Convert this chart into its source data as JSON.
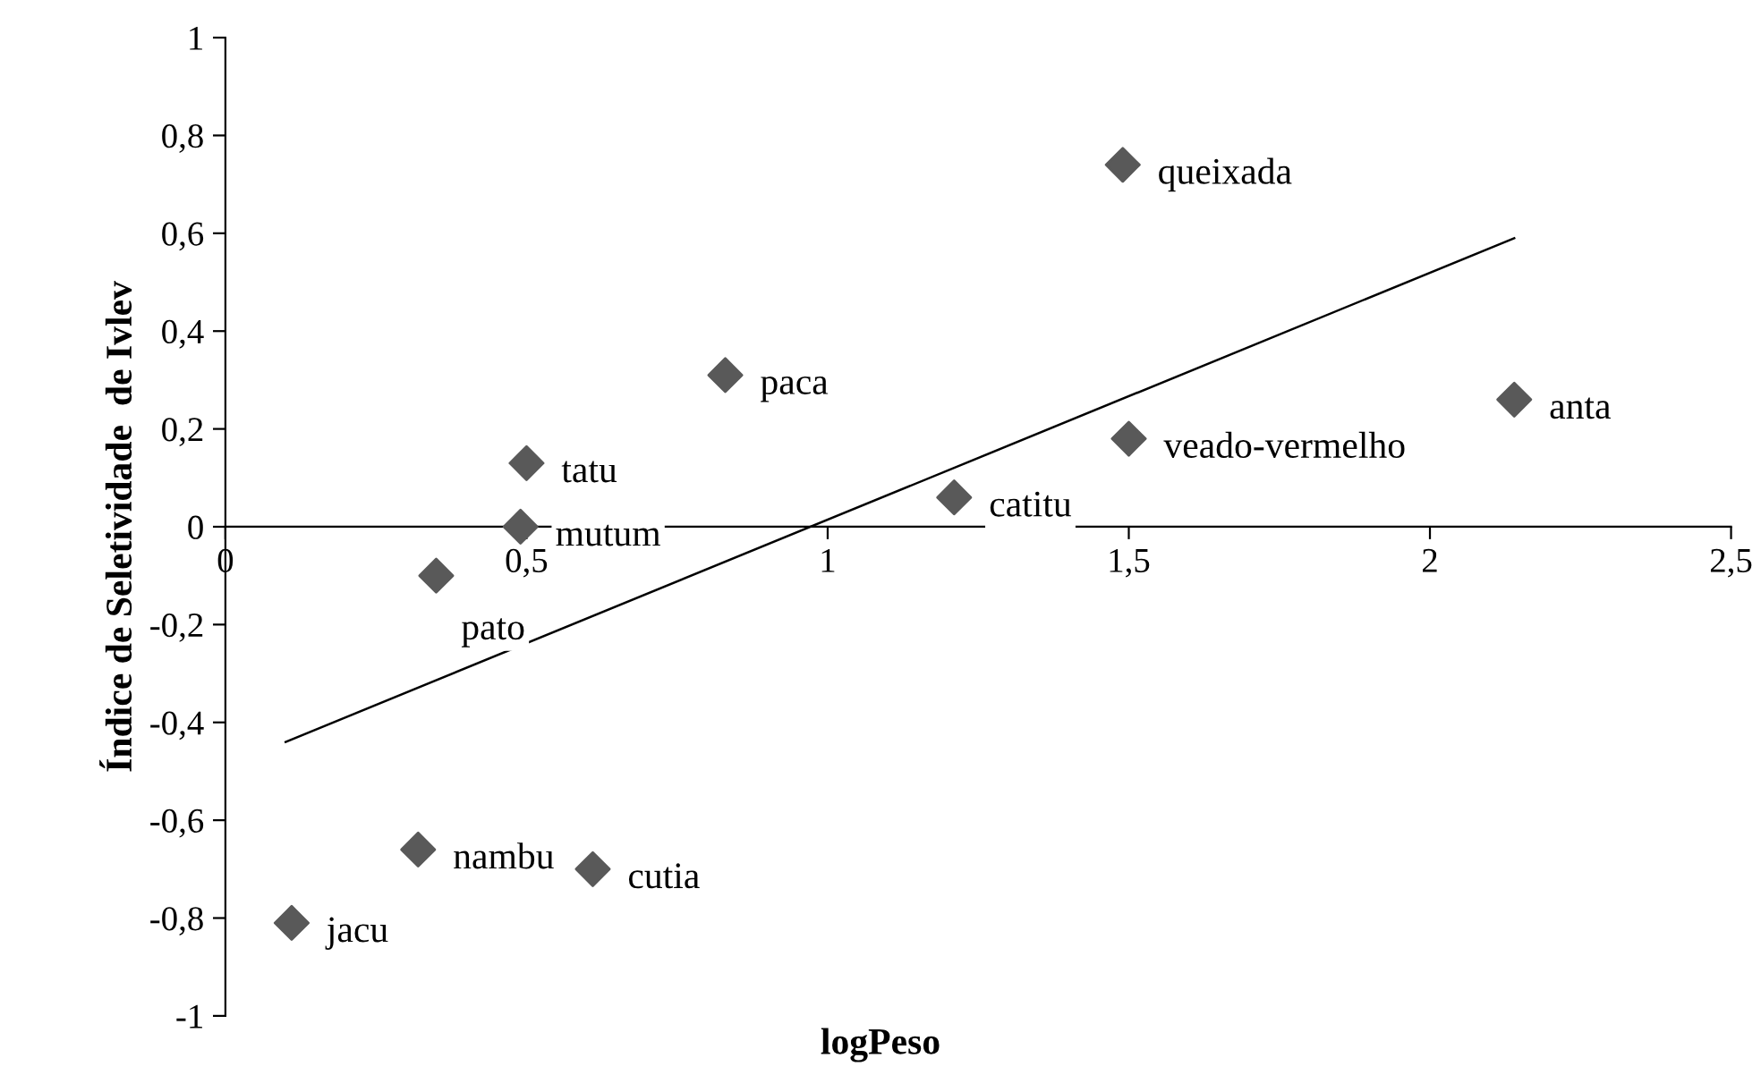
{
  "chart_data": {
    "type": "scatter",
    "xlabel": "logPeso",
    "ylabel": "Índice de Seletividade  de Ivlev",
    "series": [
      {
        "color": "#595959",
        "marker": "diamond",
        "x": [
          1.49,
          0.83,
          2.14,
          1.5,
          0.5,
          1.21,
          0.49,
          0.35,
          0.32,
          0.61,
          0.11
        ],
        "values": [
          0.74,
          0.31,
          0.26,
          0.18,
          0.13,
          0.06,
          0.0,
          -0.1,
          -0.66,
          -0.7,
          -0.81
        ]
      },
      {
        "type": "line",
        "color": "#000000",
        "marker": "none",
        "x": [
          0.1,
          2.14
        ],
        "values": [
          -0.44,
          0.59
        ]
      }
    ],
    "annotations": [
      {
        "text": "queixada",
        "x": 1.49,
        "y": 0.74
      },
      {
        "text": "paca",
        "x": 0.83,
        "y": 0.31
      },
      {
        "text": "anta",
        "x": 2.14,
        "y": 0.26
      },
      {
        "text": "veado-vermelho",
        "x": 1.5,
        "y": 0.18
      },
      {
        "text": "tatu",
        "x": 0.5,
        "y": 0.13
      },
      {
        "text": "catitu",
        "x": 1.21,
        "y": 0.06
      },
      {
        "text": "mutum",
        "x": 0.49,
        "y": 0.0
      },
      {
        "text": "pato",
        "x": 0.35,
        "y": -0.1
      },
      {
        "text": "nambu",
        "x": 0.32,
        "y": -0.66
      },
      {
        "text": "cutia",
        "x": 0.61,
        "y": -0.7
      },
      {
        "text": "jacu",
        "x": 0.11,
        "y": -0.81
      }
    ],
    "xlim": [
      0,
      2.5
    ],
    "xticks": [
      {
        "value": 0,
        "label": "0"
      },
      {
        "value": 0.5,
        "label": "0,5"
      },
      {
        "value": 1,
        "label": "1"
      },
      {
        "value": 1.5,
        "label": "1,5"
      },
      {
        "value": 2,
        "label": "2"
      },
      {
        "value": 2.5,
        "label": "2,5"
      }
    ],
    "ylim": [
      -1,
      1
    ],
    "yticks": [
      {
        "value": -1,
        "label": "-1"
      },
      {
        "value": -0.8,
        "label": "-0,8"
      },
      {
        "value": -0.6,
        "label": "-0,6"
      },
      {
        "value": -0.4,
        "label": "-0,4"
      },
      {
        "value": -0.2,
        "label": "-0,2"
      },
      {
        "value": 0,
        "label": "0"
      },
      {
        "value": 0.2,
        "label": "0,2"
      },
      {
        "value": 0.4,
        "label": "0,4"
      },
      {
        "value": 0.6,
        "label": "0,6"
      },
      {
        "value": 0.8,
        "label": "0,8"
      },
      {
        "value": 1,
        "label": "1"
      }
    ],
    "grid": false,
    "legend": false
  }
}
